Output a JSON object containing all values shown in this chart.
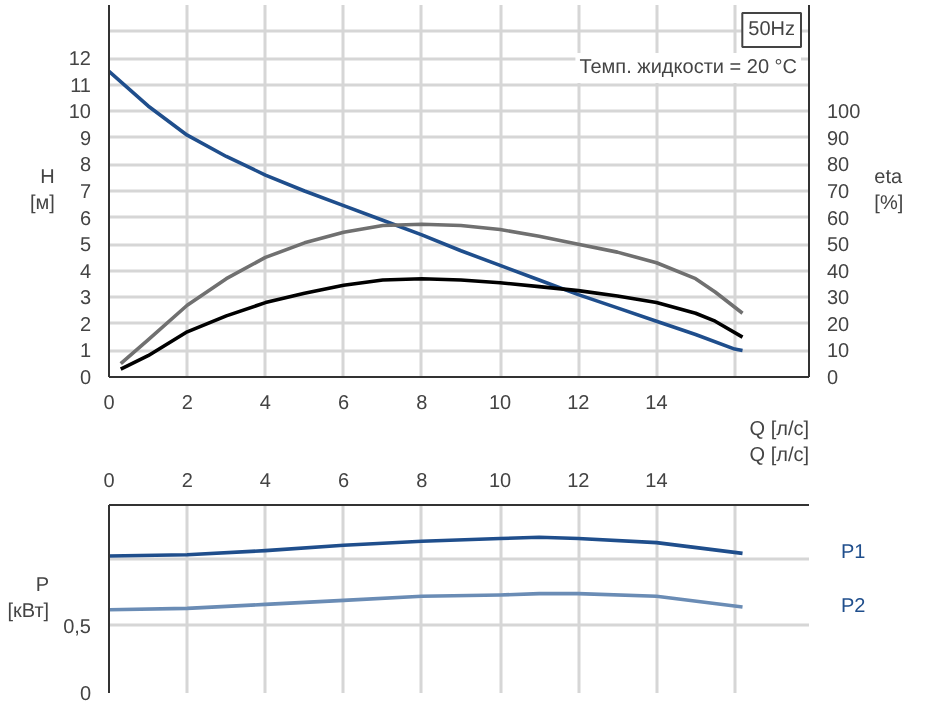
{
  "chart_data": [
    {
      "type": "line",
      "title": "50Hz",
      "xlabel": "Q [л/с]",
      "ylabel": "H [м]",
      "y2label": "eta [%]",
      "annotations": [
        "Темп. жидкости = 20 °C"
      ],
      "xlim": [
        0,
        17.9
      ],
      "xticks": [
        0,
        2,
        4,
        6,
        8,
        10,
        12,
        14,
        {
          "value": 16,
          "label": null
        }
      ],
      "ylim": [
        0,
        14
      ],
      "yticks": [
        0,
        1,
        2,
        3,
        4,
        5,
        6,
        7,
        8,
        9,
        10,
        11,
        12,
        {
          "value": 13,
          "label": null
        }
      ],
      "y2lim": [
        0,
        140
      ],
      "y2ticks": [
        0,
        10,
        20,
        30,
        40,
        50,
        60,
        70,
        80,
        90,
        100
      ],
      "grid": true,
      "marker": "none",
      "line_style": "solid",
      "series": [
        {
          "color": "#1f4e8c",
          "x": [
            0,
            1,
            2,
            3,
            4,
            5,
            6,
            7,
            8,
            9,
            10,
            11,
            12,
            13,
            14,
            15,
            16,
            16.2
          ],
          "values": [
            11.5,
            10.2,
            9.1,
            8.3,
            7.6,
            7.0,
            6.45,
            5.9,
            5.35,
            4.75,
            4.2,
            3.65,
            3.1,
            2.6,
            2.1,
            1.6,
            1.05,
            1.0
          ]
        },
        {
          "color": "#707070",
          "axis": "y2",
          "x": [
            0.3,
            1,
            2,
            3,
            4,
            5,
            6,
            7,
            8,
            9,
            10,
            11,
            12,
            13,
            14,
            15,
            15.5,
            16.2
          ],
          "values": [
            5,
            14,
            27,
            37,
            45,
            50.5,
            54.5,
            57,
            57.5,
            57,
            55.5,
            53,
            50,
            47,
            43,
            37,
            32,
            24
          ]
        },
        {
          "color": "#000000",
          "axis": "y2",
          "x": [
            0.3,
            1,
            2,
            3,
            4,
            5,
            6,
            7,
            8,
            9,
            10,
            11,
            12,
            13,
            14,
            15,
            15.5,
            16.2
          ],
          "values": [
            3,
            8,
            17,
            23,
            28,
            31.5,
            34.5,
            36.5,
            37,
            36.5,
            35.5,
            34,
            32.5,
            30.5,
            28,
            24,
            21,
            15
          ]
        }
      ]
    },
    {
      "type": "line",
      "xlabel": "Q [л/с]",
      "ylabel": "P [кВт]",
      "xlim": [
        0,
        17.9
      ],
      "xticks": [
        0,
        2,
        4,
        6,
        8,
        10,
        12,
        14,
        {
          "value": 16,
          "label": null
        }
      ],
      "ylim": [
        0,
        1.4
      ],
      "yticks": [
        0,
        {
          "value": 0.5,
          "label": "0,5"
        },
        {
          "value": 1,
          "label": null
        }
      ],
      "grid": true,
      "marker": "none",
      "line_style": "solid",
      "series": [
        {
          "name": "P1",
          "color": "#1f4e8c",
          "x": [
            0,
            2,
            4,
            6,
            8,
            10,
            11,
            12,
            14,
            16.2
          ],
          "values": [
            1.02,
            1.03,
            1.06,
            1.1,
            1.13,
            1.15,
            1.16,
            1.15,
            1.12,
            1.04
          ]
        },
        {
          "name": "P2",
          "color": "#6a8cb5",
          "x": [
            0,
            2,
            4,
            6,
            8,
            10,
            11,
            12,
            14,
            16.2
          ],
          "values": [
            0.62,
            0.63,
            0.66,
            0.69,
            0.72,
            0.73,
            0.74,
            0.74,
            0.72,
            0.64
          ]
        }
      ]
    }
  ]
}
